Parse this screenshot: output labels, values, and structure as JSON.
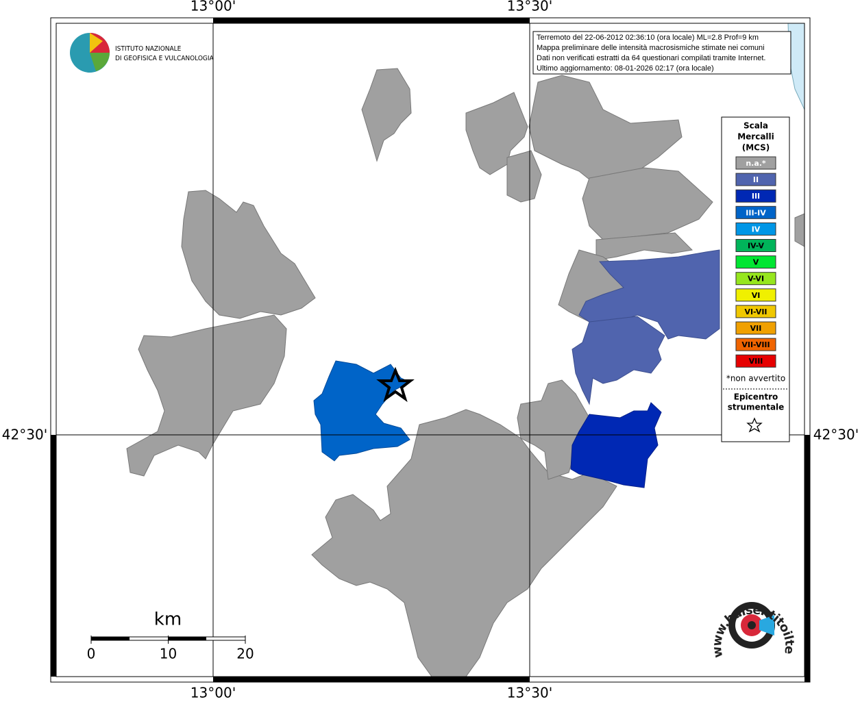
{
  "map": {
    "lon_labels": [
      "13°00'",
      "13°30'"
    ],
    "lat_labels": [
      "42°30'"
    ]
  },
  "info": [
    "Terremoto del 22-06-2012 02:36:10 (ora locale) ML=2.8 Prof=9 km",
    "Mappa preliminare delle intensità macrosismiche stimate nei comuni",
    "Dati non verificati estratti da 64 questionari compilati tramite Internet.",
    "Ultimo aggiornamento: 08-01-2026 02:17 (ora locale)"
  ],
  "legend": {
    "title": [
      "Scala",
      "Mercalli",
      "(MCS)"
    ],
    "items": [
      {
        "label": "n.a.*",
        "color": "#a0a0a0",
        "text_color": "#ffffff"
      },
      {
        "label": "II",
        "color": "#5064ae",
        "text_color": "#ffffff"
      },
      {
        "label": "III",
        "color": "#0028b4",
        "text_color": "#ffffff"
      },
      {
        "label": "III-IV",
        "color": "#0064c8",
        "text_color": "#ffffff"
      },
      {
        "label": "IV",
        "color": "#0096e6",
        "text_color": "#ffffff"
      },
      {
        "label": "IV-V",
        "color": "#00b45a",
        "text_color": "#000000"
      },
      {
        "label": "V",
        "color": "#00e632",
        "text_color": "#000000"
      },
      {
        "label": "V-VI",
        "color": "#96e61e",
        "text_color": "#000000"
      },
      {
        "label": "VI",
        "color": "#f0f000",
        "text_color": "#000000"
      },
      {
        "label": "VI-VII",
        "color": "#f0c800",
        "text_color": "#000000"
      },
      {
        "label": "VII",
        "color": "#f0a000",
        "text_color": "#000000"
      },
      {
        "label": "VII-VIII",
        "color": "#f06400",
        "text_color": "#000000"
      },
      {
        "label": "VIII",
        "color": "#e60000",
        "text_color": "#000000"
      }
    ],
    "note": "*non avvertito",
    "epicenter": [
      "Epicentro",
      "strumentale"
    ]
  },
  "scale": {
    "unit": "km",
    "ticks": [
      0,
      10,
      20
    ]
  },
  "logos": {
    "ingv": [
      "ISTITUTO NAZIONALE",
      "DI GEOFISICA E VULCANOLOGIA"
    ],
    "hsit": "www.haisentitoilterremoto.it"
  }
}
